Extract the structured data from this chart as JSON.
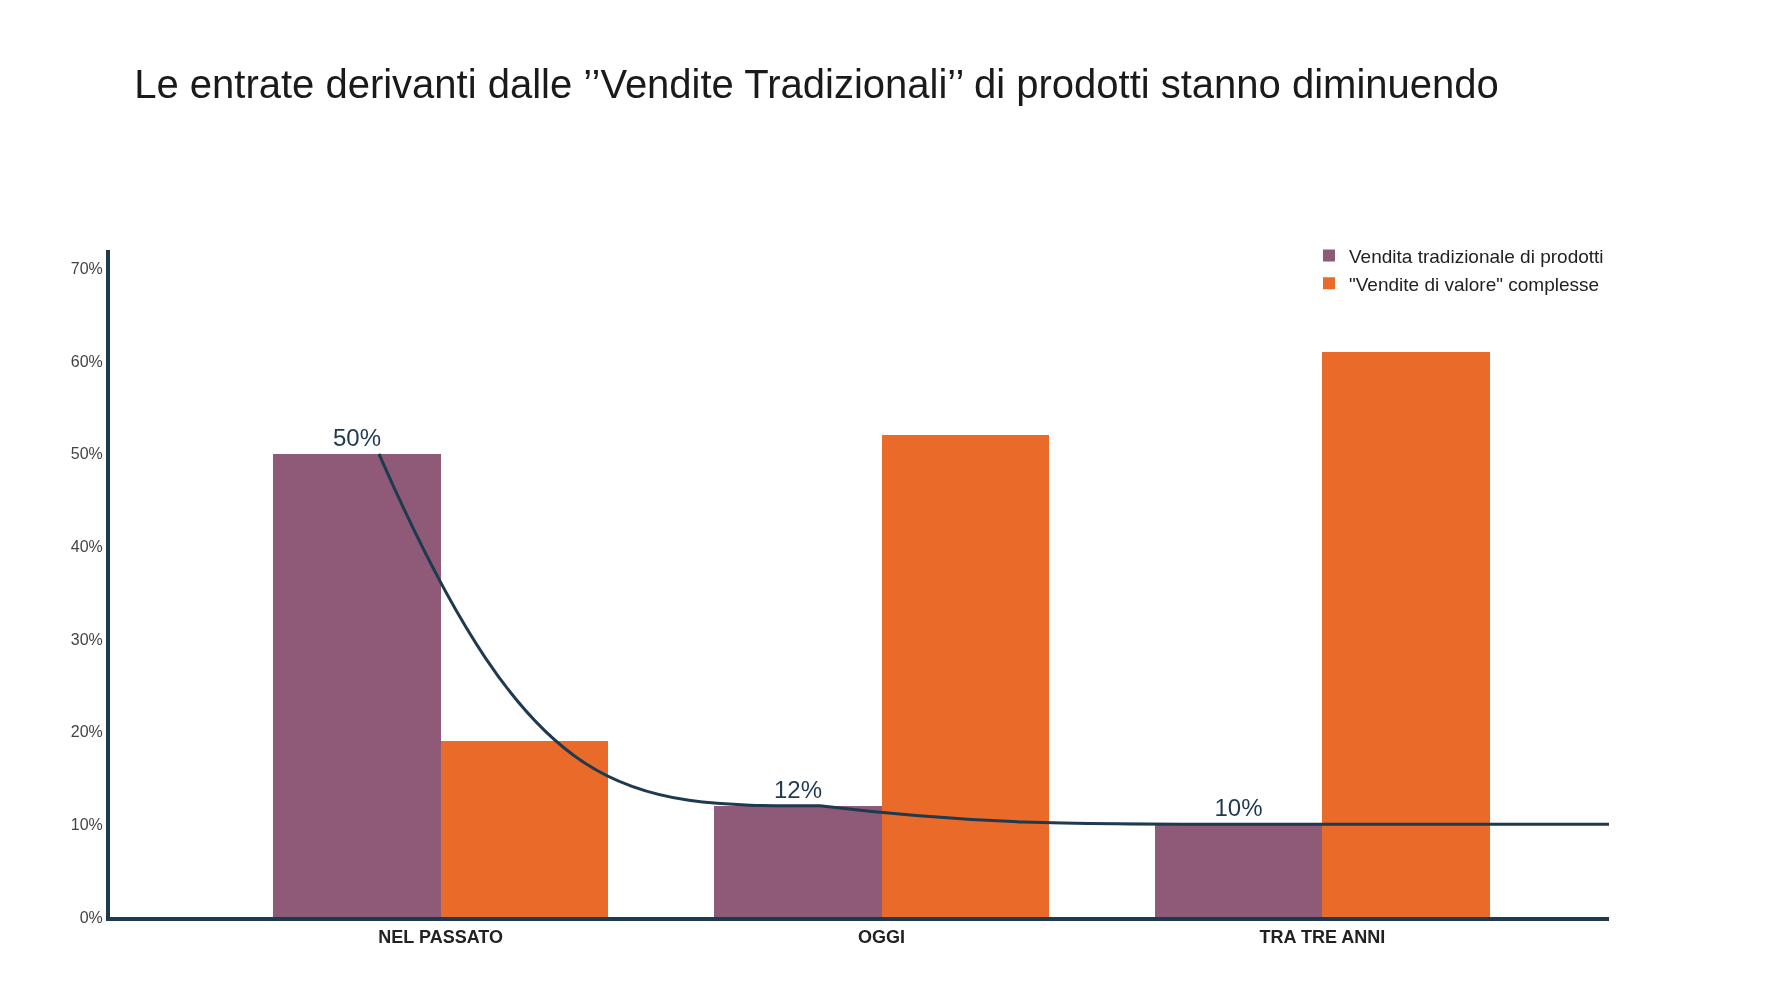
{
  "chart_data": {
    "type": "bar",
    "title": "Le entrate derivanti dalle ’’Vendite Tradizionali’’ di prodotti stanno diminuendo",
    "categories": [
      "NEL PASSATO",
      "OGGI",
      "TRA TRE ANNI"
    ],
    "series": [
      {
        "name": "Vendita tradizionale di prodotti",
        "color": "#8e5a78",
        "values": [
          50,
          12,
          10
        ],
        "value_labels": [
          "50%",
          "12%",
          "10%"
        ]
      },
      {
        "name": "\"Vendite di valore\" complesse",
        "color": "#ea6a2a",
        "values": [
          19,
          52,
          61
        ]
      }
    ],
    "ylim": [
      0,
      72
    ],
    "yticks": [
      {
        "value": 0,
        "label": "0%"
      },
      {
        "value": 10,
        "label": "10%"
      },
      {
        "value": 20,
        "label": "20%"
      },
      {
        "value": 30,
        "label": "30%"
      },
      {
        "value": 40,
        "label": "40%"
      },
      {
        "value": 50,
        "label": "50%"
      },
      {
        "value": 60,
        "label": "60%"
      },
      {
        "value": 70,
        "label": "70%"
      }
    ],
    "legend": "top right"
  }
}
